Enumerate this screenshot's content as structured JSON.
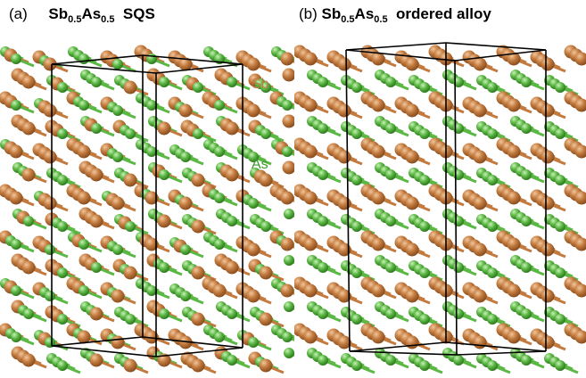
{
  "panel_a": {
    "letter": "(a)",
    "formula_sb": "Sb",
    "formula_sb_sub": "0.5",
    "formula_as": "As",
    "formula_as_sub": "0.5",
    "suffix": "SQS",
    "label_sb": "Sb",
    "label_as": "As"
  },
  "panel_b": {
    "letter": "(b)",
    "formula_sb": "Sb",
    "formula_sb_sub": "0.5",
    "formula_as": "As",
    "formula_as_sub": "0.5",
    "suffix": "ordered alloy"
  },
  "colors": {
    "sb_atom": "#c27a3e",
    "sb_label": "#c27a3e",
    "as_atom": "#5cb845",
    "as_label": "#3a9a2a",
    "cell_edge": "#000000"
  }
}
